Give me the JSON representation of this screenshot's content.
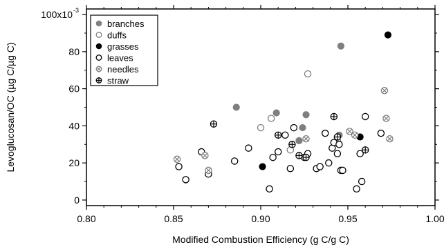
{
  "chart_data": {
    "type": "scatter",
    "xlabel": "Modified Combustion Efficiency (g C/g C)",
    "ylabel": "Levoglucosan/OC (µg C/µg C)",
    "xlim": [
      0.8,
      1.0
    ],
    "ylim": [
      -3,
      103
    ],
    "x_ticks": [
      "0.80",
      "0.85",
      "0.90",
      "0.95",
      "1.00"
    ],
    "x_tick_values": [
      0.8,
      0.85,
      0.9,
      0.95,
      1.0
    ],
    "y_ticks": [
      "0",
      "20",
      "40",
      "60",
      "80",
      "100"
    ],
    "y_tick_values": [
      0,
      20,
      40,
      60,
      80,
      100
    ],
    "y_top_label": "100x10",
    "y_exponent": "-3",
    "grid": false,
    "legend_position": "top-left",
    "series": [
      {
        "name": "branches",
        "marker": "filled-gray",
        "points": [
          [
            0.886,
            50
          ],
          [
            0.909,
            47
          ],
          [
            0.922,
            32
          ],
          [
            0.924,
            39
          ],
          [
            0.926,
            46
          ],
          [
            0.945,
            35
          ],
          [
            0.946,
            83
          ]
        ]
      },
      {
        "name": "duffs",
        "marker": "open-gray",
        "points": [
          [
            0.9,
            39
          ],
          [
            0.906,
            44
          ],
          [
            0.917,
            27
          ],
          [
            0.927,
            68
          ],
          [
            0.944,
            32
          ]
        ]
      },
      {
        "name": "grasses",
        "marker": "filled-black",
        "points": [
          [
            0.901,
            18
          ],
          [
            0.957,
            34
          ],
          [
            0.973,
            89
          ]
        ]
      },
      {
        "name": "leaves",
        "marker": "open-black",
        "points": [
          [
            0.853,
            18
          ],
          [
            0.857,
            11
          ],
          [
            0.866,
            26
          ],
          [
            0.87,
            14
          ],
          [
            0.885,
            21
          ],
          [
            0.893,
            28
          ],
          [
            0.905,
            6
          ],
          [
            0.907,
            23
          ],
          [
            0.91,
            26
          ],
          [
            0.914,
            35
          ],
          [
            0.917,
            17
          ],
          [
            0.919,
            39
          ],
          [
            0.925,
            23
          ],
          [
            0.927,
            25
          ],
          [
            0.932,
            17
          ],
          [
            0.934,
            18
          ],
          [
            0.937,
            36
          ],
          [
            0.939,
            20
          ],
          [
            0.941,
            28
          ],
          [
            0.942,
            31
          ],
          [
            0.944,
            25
          ],
          [
            0.945,
            30
          ],
          [
            0.946,
            16
          ],
          [
            0.947,
            16
          ],
          [
            0.955,
            6
          ],
          [
            0.957,
            25
          ],
          [
            0.958,
            10
          ],
          [
            0.96,
            45
          ],
          [
            0.969,
            36
          ]
        ]
      },
      {
        "name": "needles",
        "marker": "open-gray-x",
        "points": [
          [
            0.852,
            22
          ],
          [
            0.868,
            24
          ],
          [
            0.87,
            16
          ],
          [
            0.926,
            33
          ],
          [
            0.951,
            37
          ],
          [
            0.954,
            35
          ],
          [
            0.971,
            59
          ],
          [
            0.972,
            44
          ],
          [
            0.974,
            33
          ]
        ]
      },
      {
        "name": "straw",
        "marker": "open-black-plus",
        "points": [
          [
            0.873,
            41
          ],
          [
            0.91,
            35
          ],
          [
            0.918,
            30
          ],
          [
            0.922,
            24
          ],
          [
            0.926,
            23
          ],
          [
            0.942,
            45
          ],
          [
            0.944,
            34
          ],
          [
            0.96,
            27
          ]
        ]
      }
    ]
  }
}
